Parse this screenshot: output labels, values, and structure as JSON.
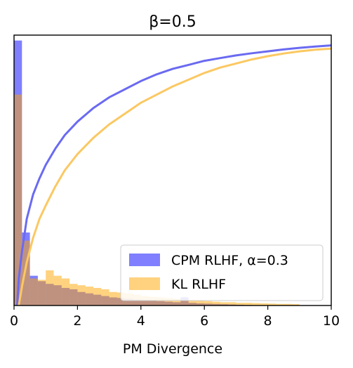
{
  "chart_data": {
    "type": "bar",
    "title": "β=0.5",
    "xlabel": "PM Divergence",
    "ylabel": "",
    "xlim": [
      0,
      10
    ],
    "ylim": [
      0,
      1.0
    ],
    "xticks": [
      "0",
      "2",
      "4",
      "6",
      "8",
      "10"
    ],
    "yticks_shown": false,
    "grid": false,
    "legend": {
      "placement": "lower-right",
      "entries": [
        "CPM RLHF, α=0.3",
        "KL RLHF"
      ]
    },
    "bin_width": 0.25,
    "bin_start": 0,
    "series": [
      {
        "name": "CPM RLHF, α=0.3",
        "kind": "histogram",
        "color": "#0000ff",
        "opacity": 0.5,
        "values": [
          0.98,
          0.27,
          0.11,
          0.09,
          0.08,
          0.075,
          0.065,
          0.06,
          0.05,
          0.045,
          0.04,
          0.035,
          0.03,
          0.028,
          0.025,
          0.022,
          0.02,
          0.018,
          0.016,
          0.014,
          0.012,
          0.03,
          0.01,
          0.008,
          0.007,
          0.006,
          0.005,
          0.004,
          0.003,
          0.002
        ]
      },
      {
        "name": "KL RLHF",
        "kind": "histogram",
        "color": "#ffa500",
        "opacity": 0.5,
        "values": [
          0.78,
          0.24,
          0.1,
          0.095,
          0.13,
          0.11,
          0.1,
          0.08,
          0.075,
          0.07,
          0.065,
          0.06,
          0.05,
          0.048,
          0.045,
          0.04,
          0.035,
          0.032,
          0.03,
          0.028,
          0.025,
          0.022,
          0.02,
          0.018,
          0.016,
          0.014,
          0.012,
          0.012,
          0.01,
          0.01,
          0.009,
          0.008,
          0.007,
          0.006,
          0.006,
          0.005
        ]
      },
      {
        "name": "CPM RLHF, α=0.3",
        "kind": "cdf",
        "color": "#6a6af2",
        "x": [
          0.1,
          0.15,
          0.25,
          0.4,
          0.6,
          0.8,
          1.0,
          1.3,
          1.6,
          2.0,
          2.5,
          3.0,
          3.5,
          4.0,
          4.5,
          5.0,
          5.5,
          6.0,
          6.5,
          7.0,
          7.5,
          8.0,
          8.5,
          9.0,
          9.5,
          10.0
        ],
        "y": [
          0.0,
          0.1,
          0.2,
          0.32,
          0.41,
          0.47,
          0.52,
          0.58,
          0.63,
          0.68,
          0.73,
          0.77,
          0.8,
          0.83,
          0.855,
          0.875,
          0.89,
          0.905,
          0.915,
          0.925,
          0.933,
          0.94,
          0.947,
          0.953,
          0.958,
          0.962
        ]
      },
      {
        "name": "KL RLHF",
        "kind": "cdf",
        "color": "#fbc862",
        "x": [
          0.15,
          0.25,
          0.4,
          0.6,
          0.8,
          1.0,
          1.3,
          1.6,
          2.0,
          2.5,
          3.0,
          3.5,
          4.0,
          4.5,
          5.0,
          5.5,
          6.0,
          6.5,
          7.0,
          7.5,
          8.0,
          8.5,
          9.0,
          9.5,
          10.0
        ],
        "y": [
          0.0,
          0.07,
          0.16,
          0.25,
          0.32,
          0.37,
          0.44,
          0.5,
          0.56,
          0.62,
          0.67,
          0.71,
          0.75,
          0.78,
          0.81,
          0.835,
          0.86,
          0.88,
          0.895,
          0.91,
          0.922,
          0.932,
          0.94,
          0.946,
          0.95
        ]
      }
    ]
  }
}
